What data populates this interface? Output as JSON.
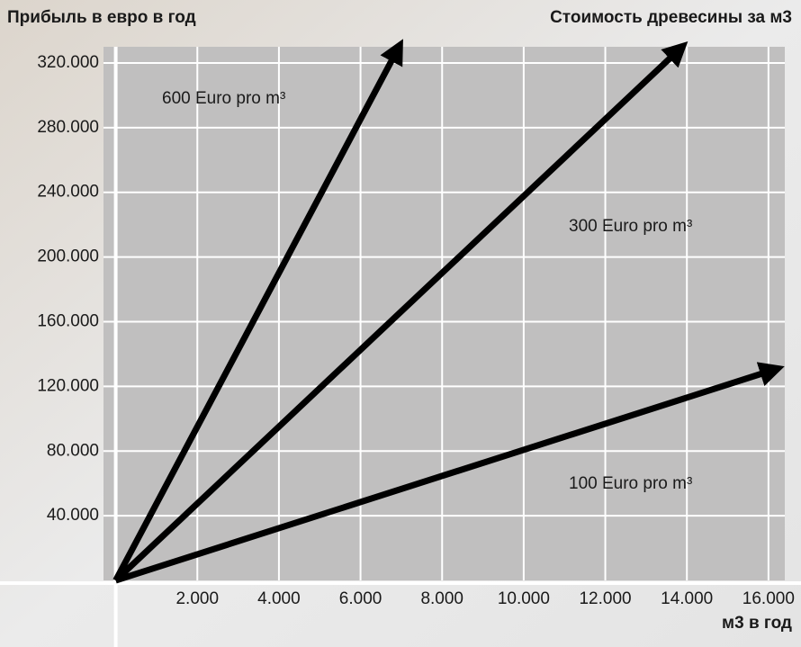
{
  "chart_data": {
    "type": "line",
    "title": "Прибыль в евро в год",
    "subtitle": "Стоимость древесины за м3",
    "x_label": "м3 в год",
    "xlim": [
      -300,
      16400
    ],
    "ylim": [
      0,
      330000
    ],
    "xticks": [
      {
        "value": 2000,
        "label": "2.000"
      },
      {
        "value": 4000,
        "label": "4.000"
      },
      {
        "value": 6000,
        "label": "6.000"
      },
      {
        "value": 8000,
        "label": "8.000"
      },
      {
        "value": 10000,
        "label": "10.000"
      },
      {
        "value": 12000,
        "label": "12.000"
      },
      {
        "value": 14000,
        "label": "14.000"
      },
      {
        "value": 16000,
        "label": "16.000"
      }
    ],
    "yticks": [
      {
        "value": 40000,
        "label": "40.000"
      },
      {
        "value": 80000,
        "label": "80.000"
      },
      {
        "value": 120000,
        "label": "120.000"
      },
      {
        "value": 160000,
        "label": "160.000"
      },
      {
        "value": 200000,
        "label": "200.000"
      },
      {
        "value": 240000,
        "label": "240.000"
      },
      {
        "value": 280000,
        "label": "280.000"
      },
      {
        "value": 320000,
        "label": "320.000"
      }
    ],
    "grid": true,
    "series": [
      {
        "name": "600 Euro pro m³",
        "color": "#000000",
        "x": [
          0,
          6900
        ],
        "values": [
          0,
          328000
        ]
      },
      {
        "name": "300 Euro pro m³",
        "color": "#000000",
        "x": [
          0,
          13800
        ],
        "values": [
          0,
          328000
        ]
      },
      {
        "name": "100 Euro pro m³",
        "color": "#000000",
        "x": [
          0,
          16100
        ],
        "values": [
          0,
          130000
        ]
      }
    ]
  }
}
